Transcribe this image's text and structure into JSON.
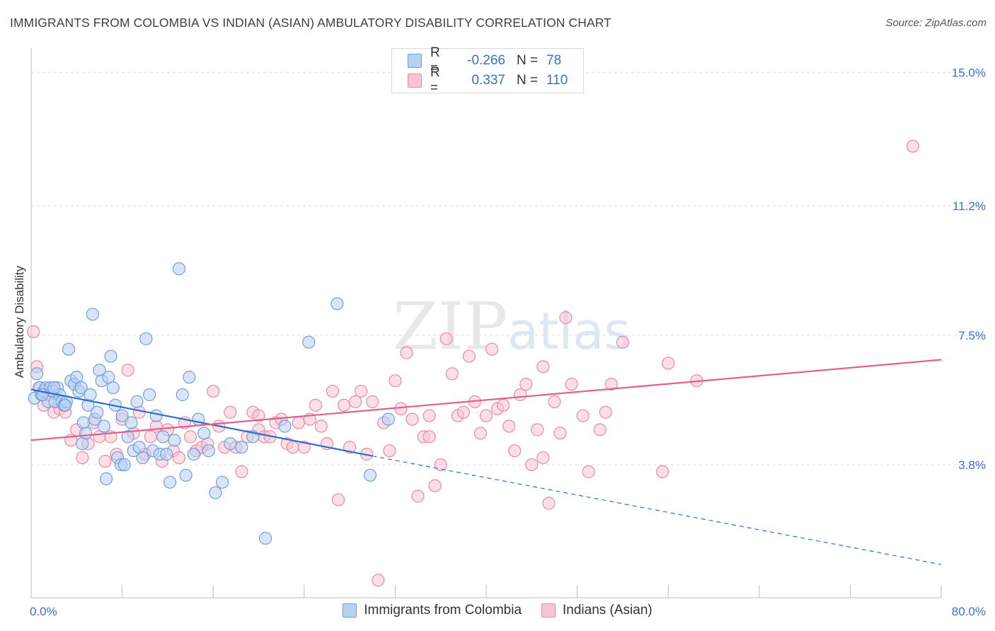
{
  "title": "IMMIGRANTS FROM COLOMBIA VS INDIAN (ASIAN) AMBULATORY DISABILITY CORRELATION CHART",
  "source": "Source: ZipAtlas.com",
  "watermark": {
    "zip": "ZIP",
    "atlas": "atlas"
  },
  "legend": {
    "r_label": "R =",
    "n_label": "N =",
    "series": [
      {
        "name": "Immigrants from Colombia",
        "r": "-0.266",
        "n": "78",
        "color": "#6f9fe0",
        "fill": "#b9d0f1",
        "line": "#2f6fd1"
      },
      {
        "name": "Indians (Asian)",
        "r": "0.337",
        "n": "110",
        "color": "#e98aa9",
        "fill": "#f6c4d3",
        "line": "#e0608a"
      }
    ]
  },
  "chart_data": {
    "type": "scatter",
    "title": "IMMIGRANTS FROM COLOMBIA VS INDIAN (ASIAN) AMBULATORY DISABILITY CORRELATION CHART",
    "xlabel": "",
    "ylabel": "Ambulatory Disability",
    "xlim": [
      0,
      80
    ],
    "ylim": [
      0,
      15.5
    ],
    "x_tick_labels": [
      "0.0%",
      "80.0%"
    ],
    "y_ticks": [
      3.8,
      7.5,
      11.2,
      15.0
    ],
    "y_tick_labels": [
      "3.8%",
      "7.5%",
      "11.2%",
      "15.0%"
    ],
    "grid": true,
    "legend_position": "top-center",
    "series": [
      {
        "name": "Immigrants from Colombia",
        "trend": {
          "x0": 0,
          "y0": 5.95,
          "x1": 30,
          "y1": 4.05,
          "dashed_to_x": 80,
          "dashed_to_y": 0.95
        },
        "points": [
          [
            0.3,
            5.7
          ],
          [
            0.5,
            6.4
          ],
          [
            0.7,
            6.0
          ],
          [
            0.9,
            5.8
          ],
          [
            1.1,
            5.9
          ],
          [
            1.3,
            6.0
          ],
          [
            1.5,
            5.6
          ],
          [
            1.7,
            6.0
          ],
          [
            1.9,
            5.9
          ],
          [
            2.1,
            5.6
          ],
          [
            2.3,
            6.0
          ],
          [
            2.5,
            5.8
          ],
          [
            2.7,
            5.6
          ],
          [
            2.9,
            5.5
          ],
          [
            3.1,
            5.6
          ],
          [
            3.3,
            7.1
          ],
          [
            3.5,
            6.2
          ],
          [
            3.8,
            6.1
          ],
          [
            4.0,
            6.3
          ],
          [
            4.2,
            5.9
          ],
          [
            4.4,
            6.0
          ],
          [
            4.6,
            5.0
          ],
          [
            4.8,
            4.7
          ],
          [
            5.0,
            5.5
          ],
          [
            5.2,
            5.8
          ],
          [
            5.4,
            8.1
          ],
          [
            5.6,
            5.1
          ],
          [
            5.8,
            5.3
          ],
          [
            6.0,
            6.5
          ],
          [
            6.2,
            6.2
          ],
          [
            6.4,
            4.9
          ],
          [
            6.6,
            3.4
          ],
          [
            6.8,
            6.3
          ],
          [
            7.0,
            6.9
          ],
          [
            7.2,
            6.0
          ],
          [
            7.4,
            5.5
          ],
          [
            7.6,
            4.0
          ],
          [
            7.9,
            3.8
          ],
          [
            8.2,
            3.8
          ],
          [
            8.5,
            4.6
          ],
          [
            8.8,
            5.0
          ],
          [
            9.0,
            4.2
          ],
          [
            9.3,
            5.6
          ],
          [
            9.5,
            4.3
          ],
          [
            9.8,
            4.0
          ],
          [
            10.1,
            7.4
          ],
          [
            10.4,
            5.8
          ],
          [
            10.7,
            4.2
          ],
          [
            11.0,
            5.2
          ],
          [
            11.3,
            4.1
          ],
          [
            11.6,
            4.6
          ],
          [
            11.9,
            4.1
          ],
          [
            12.2,
            3.3
          ],
          [
            12.6,
            4.5
          ],
          [
            13.0,
            9.4
          ],
          [
            13.3,
            5.8
          ],
          [
            13.6,
            3.5
          ],
          [
            13.9,
            6.3
          ],
          [
            14.3,
            4.1
          ],
          [
            14.7,
            5.1
          ],
          [
            15.2,
            4.7
          ],
          [
            15.6,
            4.2
          ],
          [
            16.2,
            3.0
          ],
          [
            16.8,
            3.3
          ],
          [
            17.5,
            4.4
          ],
          [
            18.5,
            4.3
          ],
          [
            19.5,
            4.6
          ],
          [
            20.6,
            1.7
          ],
          [
            22.3,
            4.9
          ],
          [
            24.4,
            7.3
          ],
          [
            26.9,
            8.4
          ],
          [
            31.4,
            5.1
          ],
          [
            29.8,
            3.5
          ],
          [
            1.0,
            5.8
          ],
          [
            2.0,
            6.0
          ],
          [
            3.0,
            5.5
          ],
          [
            4.5,
            4.4
          ],
          [
            8.0,
            5.2
          ]
        ]
      },
      {
        "name": "Indians (Asian)",
        "trend": {
          "x0": 0,
          "y0": 4.5,
          "x1": 80,
          "y1": 6.8
        },
        "points": [
          [
            0.2,
            7.6
          ],
          [
            0.5,
            6.6
          ],
          [
            0.8,
            6.0
          ],
          [
            1.1,
            5.5
          ],
          [
            1.5,
            5.8
          ],
          [
            2.0,
            5.3
          ],
          [
            2.5,
            5.4
          ],
          [
            3.0,
            5.3
          ],
          [
            3.5,
            4.5
          ],
          [
            4.0,
            4.8
          ],
          [
            4.5,
            4.0
          ],
          [
            5.0,
            4.4
          ],
          [
            5.5,
            5.0
          ],
          [
            6.0,
            4.6
          ],
          [
            6.5,
            3.9
          ],
          [
            7.0,
            4.6
          ],
          [
            7.5,
            4.1
          ],
          [
            8.0,
            5.1
          ],
          [
            8.5,
            6.5
          ],
          [
            9.0,
            4.7
          ],
          [
            9.5,
            5.3
          ],
          [
            10.0,
            4.1
          ],
          [
            10.5,
            4.6
          ],
          [
            11.0,
            4.9
          ],
          [
            11.5,
            3.9
          ],
          [
            12.0,
            4.8
          ],
          [
            12.5,
            4.2
          ],
          [
            13.0,
            4.0
          ],
          [
            13.5,
            5.0
          ],
          [
            14.0,
            4.6
          ],
          [
            14.5,
            4.2
          ],
          [
            15.0,
            4.3
          ],
          [
            15.5,
            4.4
          ],
          [
            16.0,
            5.9
          ],
          [
            16.5,
            4.9
          ],
          [
            17.0,
            4.3
          ],
          [
            17.5,
            5.3
          ],
          [
            18.0,
            4.3
          ],
          [
            18.5,
            3.6
          ],
          [
            19.0,
            4.6
          ],
          [
            19.5,
            5.3
          ],
          [
            20.0,
            4.8
          ],
          [
            20.5,
            4.6
          ],
          [
            21.0,
            4.6
          ],
          [
            21.5,
            5.0
          ],
          [
            22.0,
            5.1
          ],
          [
            22.5,
            4.4
          ],
          [
            23.0,
            4.3
          ],
          [
            23.5,
            5.0
          ],
          [
            24.0,
            4.3
          ],
          [
            24.5,
            5.1
          ],
          [
            25.0,
            5.5
          ],
          [
            25.5,
            4.9
          ],
          [
            26.0,
            4.4
          ],
          [
            26.5,
            5.9
          ],
          [
            27.0,
            2.8
          ],
          [
            27.5,
            5.5
          ],
          [
            28.0,
            4.3
          ],
          [
            28.5,
            5.6
          ],
          [
            29.0,
            5.9
          ],
          [
            29.5,
            4.1
          ],
          [
            30.0,
            5.6
          ],
          [
            30.5,
            0.5
          ],
          [
            31.0,
            5.0
          ],
          [
            31.5,
            4.2
          ],
          [
            32.0,
            6.2
          ],
          [
            32.5,
            5.4
          ],
          [
            33.0,
            7.0
          ],
          [
            33.5,
            5.1
          ],
          [
            34.0,
            2.9
          ],
          [
            34.5,
            4.6
          ],
          [
            35.0,
            5.2
          ],
          [
            35.5,
            3.2
          ],
          [
            36.0,
            3.8
          ],
          [
            36.5,
            7.4
          ],
          [
            37.0,
            6.4
          ],
          [
            37.5,
            5.2
          ],
          [
            38.0,
            5.3
          ],
          [
            38.5,
            6.9
          ],
          [
            39.0,
            5.6
          ],
          [
            39.5,
            4.7
          ],
          [
            40.0,
            5.2
          ],
          [
            40.5,
            7.1
          ],
          [
            41.0,
            5.4
          ],
          [
            41.5,
            5.5
          ],
          [
            42.0,
            4.9
          ],
          [
            42.5,
            4.2
          ],
          [
            43.0,
            5.8
          ],
          [
            43.5,
            6.1
          ],
          [
            44.0,
            3.8
          ],
          [
            44.5,
            4.8
          ],
          [
            45.0,
            6.6
          ],
          [
            45.5,
            2.7
          ],
          [
            46.0,
            5.6
          ],
          [
            46.5,
            4.7
          ],
          [
            47.0,
            8.0
          ],
          [
            47.5,
            6.1
          ],
          [
            48.5,
            5.2
          ],
          [
            49.0,
            3.6
          ],
          [
            50.0,
            4.8
          ],
          [
            50.5,
            5.3
          ],
          [
            51.0,
            6.1
          ],
          [
            52.0,
            7.3
          ],
          [
            55.5,
            3.6
          ],
          [
            56.0,
            6.7
          ],
          [
            58.5,
            6.2
          ],
          [
            77.5,
            12.9
          ],
          [
            45.0,
            4.0
          ],
          [
            20.0,
            5.2
          ],
          [
            35.0,
            4.6
          ]
        ]
      }
    ]
  }
}
